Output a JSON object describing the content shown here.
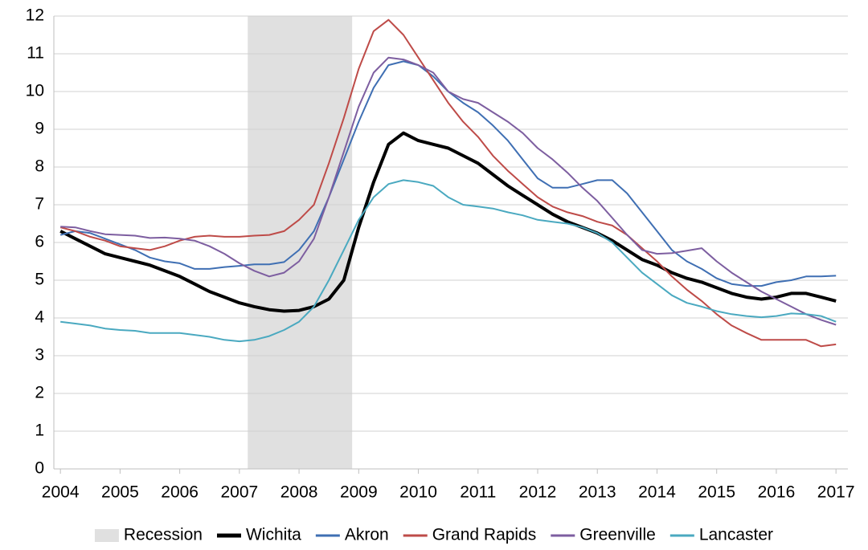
{
  "chart_data": {
    "type": "line",
    "x": [
      2004,
      2004.25,
      2004.5,
      2004.75,
      2005,
      2005.25,
      2005.5,
      2005.75,
      2006,
      2006.25,
      2006.5,
      2006.75,
      2007,
      2007.25,
      2007.5,
      2007.75,
      2008,
      2008.25,
      2008.5,
      2008.75,
      2009,
      2009.25,
      2009.5,
      2009.75,
      2010,
      2010.25,
      2010.5,
      2010.75,
      2011,
      2011.25,
      2011.5,
      2011.75,
      2012,
      2012.25,
      2012.5,
      2012.75,
      2013,
      2013.25,
      2013.5,
      2013.75,
      2014,
      2014.25,
      2014.5,
      2014.75,
      2015,
      2015.25,
      2015.5,
      2015.75,
      2016,
      2016.25,
      2016.5,
      2016.75,
      2017
    ],
    "series": [
      {
        "name": "Wichita",
        "color": "#000000",
        "width": 4,
        "values": [
          6.3,
          6.1,
          5.9,
          5.7,
          5.6,
          5.5,
          5.4,
          5.25,
          5.1,
          4.9,
          4.7,
          4.55,
          4.4,
          4.3,
          4.22,
          4.18,
          4.2,
          4.3,
          4.5,
          5.0,
          6.4,
          7.6,
          8.6,
          8.9,
          8.7,
          8.6,
          8.5,
          8.3,
          8.1,
          7.8,
          7.5,
          7.25,
          7.0,
          6.75,
          6.55,
          6.4,
          6.25,
          6.05,
          5.8,
          5.55,
          5.4,
          5.2,
          5.05,
          4.95,
          4.8,
          4.65,
          4.55,
          4.5,
          4.55,
          4.65,
          4.65,
          4.55,
          4.45
        ]
      },
      {
        "name": "Akron",
        "color": "#3f6fb3",
        "width": 2,
        "values": [
          6.2,
          6.3,
          6.25,
          6.1,
          5.95,
          5.8,
          5.6,
          5.5,
          5.45,
          5.3,
          5.3,
          5.35,
          5.38,
          5.42,
          5.42,
          5.48,
          5.8,
          6.3,
          7.2,
          8.2,
          9.2,
          10.1,
          10.7,
          10.8,
          10.7,
          10.4,
          10.0,
          9.7,
          9.45,
          9.1,
          8.7,
          8.2,
          7.7,
          7.45,
          7.45,
          7.55,
          7.65,
          7.65,
          7.3,
          6.8,
          6.3,
          5.8,
          5.5,
          5.3,
          5.05,
          4.9,
          4.85,
          4.85,
          4.95,
          5.0,
          5.1,
          5.1,
          5.12
        ]
      },
      {
        "name": "Grand Rapids",
        "color": "#be4b48",
        "width": 2,
        "values": [
          6.4,
          6.3,
          6.15,
          6.05,
          5.9,
          5.85,
          5.8,
          5.9,
          6.05,
          6.15,
          6.18,
          6.15,
          6.15,
          6.18,
          6.2,
          6.3,
          6.6,
          7.0,
          8.1,
          9.3,
          10.6,
          11.6,
          11.9,
          11.5,
          10.9,
          10.3,
          9.7,
          9.2,
          8.8,
          8.3,
          7.9,
          7.55,
          7.2,
          6.95,
          6.8,
          6.7,
          6.55,
          6.45,
          6.2,
          5.85,
          5.5,
          5.1,
          4.75,
          4.45,
          4.1,
          3.8,
          3.6,
          3.42,
          3.42,
          3.42,
          3.42,
          3.25,
          3.3
        ]
      },
      {
        "name": "Greenville",
        "color": "#7d5ea0",
        "width": 2,
        "values": [
          6.42,
          6.4,
          6.3,
          6.22,
          6.2,
          6.18,
          6.12,
          6.13,
          6.1,
          6.05,
          5.9,
          5.7,
          5.45,
          5.25,
          5.1,
          5.2,
          5.5,
          6.1,
          7.2,
          8.4,
          9.6,
          10.5,
          10.9,
          10.85,
          10.7,
          10.5,
          10.0,
          9.8,
          9.7,
          9.45,
          9.2,
          8.9,
          8.5,
          8.2,
          7.85,
          7.45,
          7.1,
          6.65,
          6.2,
          5.8,
          5.7,
          5.72,
          5.78,
          5.85,
          5.5,
          5.2,
          4.95,
          4.7,
          4.5,
          4.3,
          4.1,
          3.95,
          3.82
        ]
      },
      {
        "name": "Lancaster",
        "color": "#4aa9c0",
        "width": 2,
        "values": [
          3.9,
          3.85,
          3.8,
          3.72,
          3.68,
          3.66,
          3.6,
          3.6,
          3.6,
          3.55,
          3.5,
          3.42,
          3.38,
          3.42,
          3.52,
          3.68,
          3.9,
          4.3,
          5.0,
          5.8,
          6.6,
          7.2,
          7.55,
          7.65,
          7.6,
          7.5,
          7.2,
          7.0,
          6.95,
          6.9,
          6.8,
          6.72,
          6.6,
          6.55,
          6.5,
          6.4,
          6.25,
          6.0,
          5.6,
          5.2,
          4.9,
          4.6,
          4.4,
          4.3,
          4.18,
          4.1,
          4.05,
          4.02,
          4.05,
          4.12,
          4.1,
          4.05,
          3.9
        ]
      }
    ],
    "recession": {
      "label": "Recession",
      "start": 2007.14,
      "end": 2008.89,
      "color": "#e0e0e0"
    },
    "xlim": [
      2003.89,
      2017.2
    ],
    "xticks": [
      2004,
      2005,
      2006,
      2007,
      2008,
      2009,
      2010,
      2011,
      2012,
      2013,
      2014,
      2015,
      2016,
      2017
    ],
    "ylim": [
      0,
      12
    ],
    "yticks": [
      0,
      1,
      2,
      3,
      4,
      5,
      6,
      7,
      8,
      9,
      10,
      11,
      12
    ],
    "grid": true,
    "legend": "bottom"
  }
}
